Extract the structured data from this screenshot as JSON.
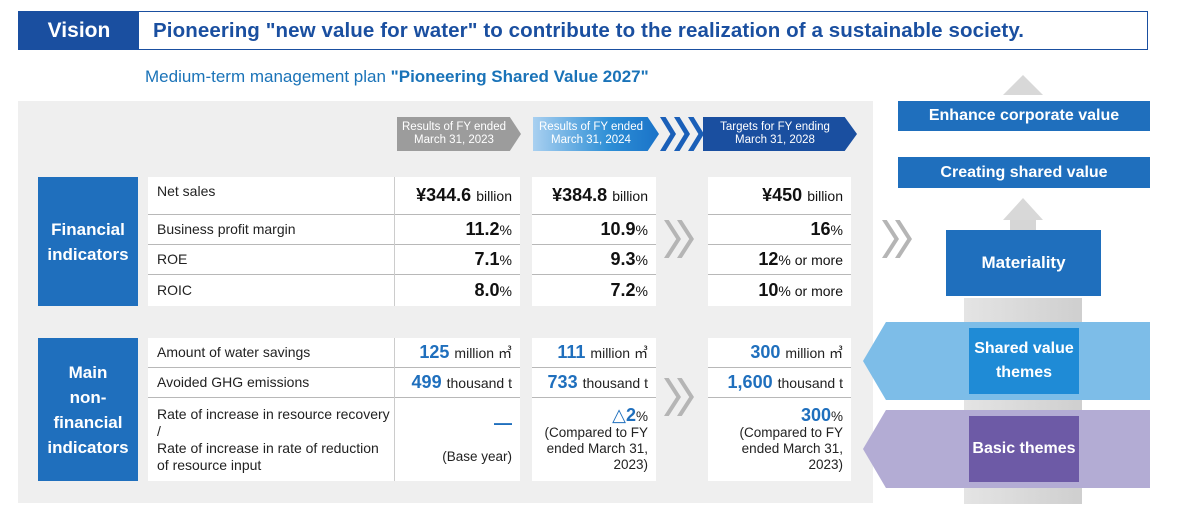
{
  "vision": {
    "label": "Vision",
    "text": "Pioneering \"new value for water\" to contribute to the realization of a sustainable society."
  },
  "plan": {
    "prefix": "Medium-term management plan ",
    "name": "\"Pioneering Shared Value 2027\""
  },
  "columns": {
    "fy2023": [
      "Results of FY ended",
      "March 31, 2023"
    ],
    "fy2024": [
      "Results of FY ended",
      "March 31, 2024"
    ],
    "fy2028": [
      "Targets for FY ending",
      "March 31, 2028"
    ]
  },
  "financial": {
    "label": [
      "Financial",
      "indicators"
    ],
    "rows": [
      {
        "label": "Net sales",
        "v2023": "¥344.6",
        "v2024": "¥384.8",
        "v2028": "¥450",
        "unit": "billion"
      },
      {
        "label": "Business profit margin",
        "v2023": "11.2",
        "v2024": "10.9",
        "v2028": "16",
        "unit": "%"
      },
      {
        "label": "ROE",
        "v2023": "7.1",
        "v2024": "9.3",
        "v2028": "12",
        "unit": "%",
        "unit2028": "% or more"
      },
      {
        "label": "ROIC",
        "v2023": "8.0",
        "v2024": "7.2",
        "v2028": "10",
        "unit": "%",
        "unit2028": "% or more"
      }
    ]
  },
  "nonfinancial": {
    "label": [
      "Main",
      "non-",
      "financial",
      "indicators"
    ],
    "rows": [
      {
        "label": "Amount of water savings",
        "v2023": "125",
        "v2024": "111",
        "v2028": "300",
        "unit": "million ㎥"
      },
      {
        "label": "Avoided GHG emissions",
        "v2023": "499",
        "v2024": "733",
        "v2028": "1,600",
        "unit": "thousand t"
      }
    ],
    "resource": {
      "label": [
        "Rate of increase in resource recovery /",
        "Rate of increase in rate of reduction",
        "of resource input"
      ],
      "v2023": "—",
      "v2023_note": "(Base year)",
      "v2024": "△2",
      "v2024_unit": "%",
      "v2024_note": [
        "(Compared to FY",
        "ended March 31,",
        "2023)"
      ],
      "v2028": "300",
      "v2028_unit": "%",
      "v2028_note": [
        "(Compared to FY",
        "ended March 31,",
        "2023)"
      ]
    }
  },
  "diagram": {
    "enhance": "Enhance corporate value",
    "creating": "Creating shared value",
    "materiality": "Materiality",
    "shared_value": [
      "Shared value",
      "themes"
    ],
    "basic": "Basic themes"
  },
  "colors": {
    "primary": "#1a4fa0",
    "accent": "#1f6fbd",
    "shared_band": "#7dbde8",
    "basic_band": "#b3acd4",
    "basic_box": "#6d5aa6"
  }
}
